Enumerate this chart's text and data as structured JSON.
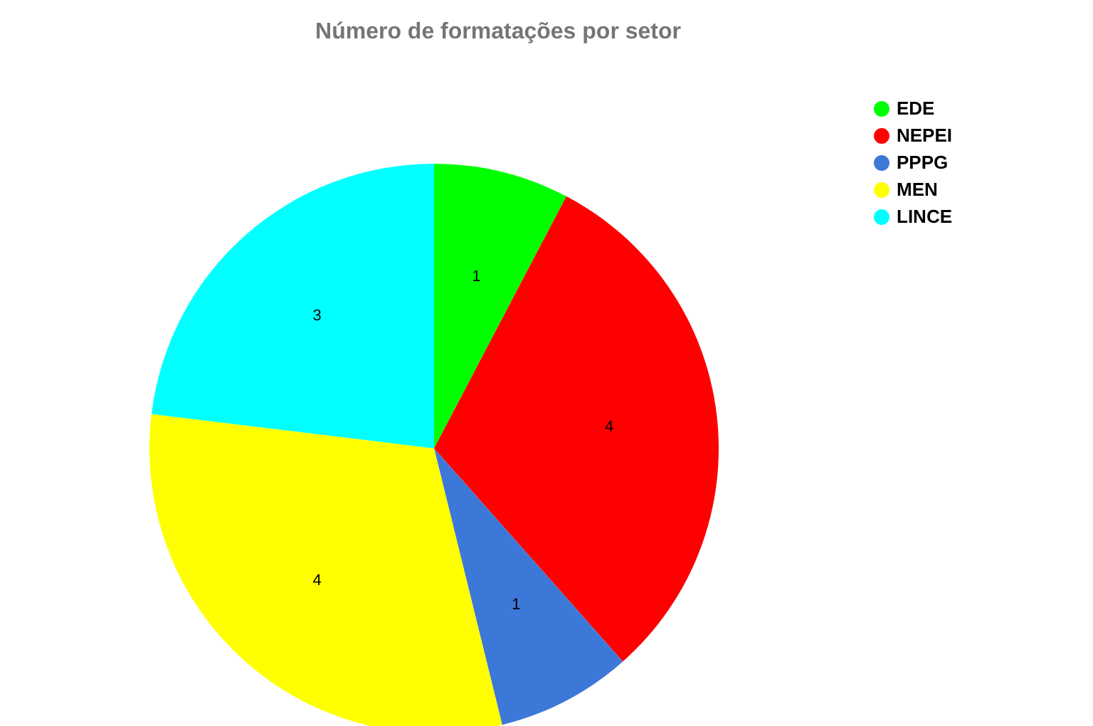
{
  "chart_data": {
    "type": "pie",
    "title": "Número de formatações por setor",
    "categories": [
      "EDE",
      "NEPEI",
      "PPPG",
      "MEN",
      "LINCE"
    ],
    "values": [
      1,
      4,
      1,
      4,
      3
    ],
    "colors": [
      "#00ff00",
      "#ff0000",
      "#3c78d8",
      "#ffff00",
      "#00ffff"
    ],
    "data_labels": true,
    "legend": "top right"
  }
}
